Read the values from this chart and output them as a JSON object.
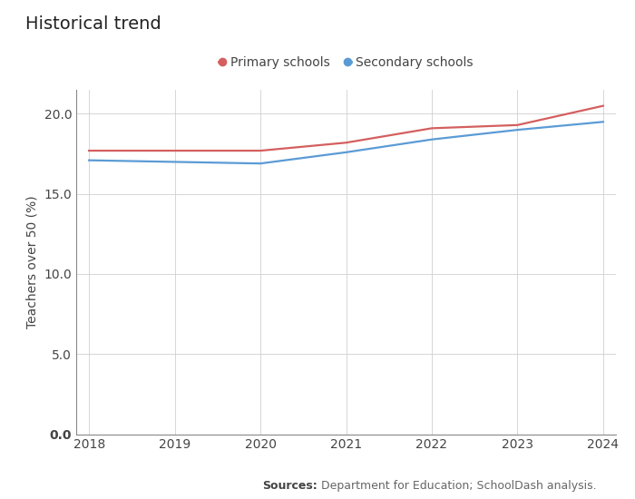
{
  "title": "Historical trend",
  "years": [
    2018,
    2019,
    2020,
    2021,
    2022,
    2023,
    2024
  ],
  "primary": [
    17.7,
    17.7,
    17.7,
    18.2,
    19.1,
    19.3,
    20.5
  ],
  "secondary": [
    17.1,
    17.0,
    16.9,
    17.6,
    18.4,
    19.0,
    19.5
  ],
  "primary_color": "#d45f5f",
  "secondary_color": "#5b9bd5",
  "ylabel": "Teachers over 50 (%)",
  "ylim": [
    0,
    21.5
  ],
  "yticks": [
    0.0,
    5.0,
    10.0,
    15.0,
    20.0
  ],
  "background_color": "#ffffff",
  "grid_color": "#d0d0d0",
  "legend_labels": [
    "Primary schools",
    "Secondary schools"
  ],
  "source_bold": "Sources:",
  "source_normal": " Department for Education; SchoolDash analysis.",
  "title_fontsize": 14,
  "axis_fontsize": 10,
  "legend_fontsize": 10,
  "source_fontsize": 9,
  "line_width": 1.6
}
